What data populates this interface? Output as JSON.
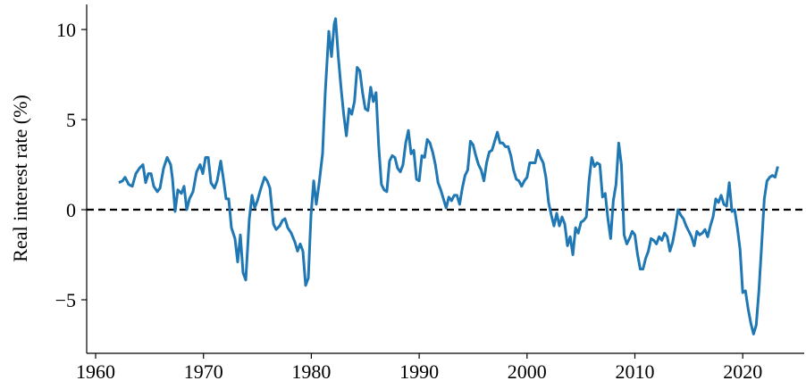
{
  "chart_data": {
    "type": "line",
    "y_label": "Real interest rate (%)",
    "x": [
      1962.15,
      1962.49,
      1962.73,
      1963.07,
      1963.4,
      1963.73,
      1964.06,
      1964.39,
      1964.64,
      1964.89,
      1965.14,
      1965.39,
      1965.72,
      1965.97,
      1966.3,
      1966.63,
      1966.96,
      1967.13,
      1967.37,
      1967.62,
      1967.95,
      1968.2,
      1968.45,
      1968.7,
      1969.03,
      1969.36,
      1969.69,
      1969.94,
      1970.19,
      1970.44,
      1970.69,
      1971.02,
      1971.27,
      1971.6,
      1971.85,
      1972.1,
      1972.34,
      1972.59,
      1972.92,
      1973.17,
      1973.42,
      1973.67,
      1973.92,
      1974.25,
      1974.5,
      1974.75,
      1975.0,
      1975.33,
      1975.66,
      1975.91,
      1976.16,
      1976.49,
      1976.74,
      1977.07,
      1977.32,
      1977.56,
      1977.81,
      1978.14,
      1978.48,
      1978.72,
      1978.97,
      1979.22,
      1979.47,
      1979.72,
      1979.97,
      1980.22,
      1980.46,
      1980.71,
      1981.04,
      1981.29,
      1981.62,
      1981.87,
      1982.12,
      1982.25,
      1982.5,
      1982.75,
      1983,
      1983.25,
      1983.5,
      1983.75,
      1984,
      1984.25,
      1984.5,
      1984.75,
      1985,
      1985.25,
      1985.5,
      1985.75,
      1986,
      1986.25,
      1986.5,
      1986.75,
      1987,
      1987.25,
      1987.5,
      1987.75,
      1988,
      1988.25,
      1988.5,
      1988.75,
      1989,
      1989.25,
      1989.5,
      1989.75,
      1990,
      1990.25,
      1990.5,
      1990.75,
      1991,
      1991.25,
      1991.5,
      1991.75,
      1992,
      1992.25,
      1992.5,
      1992.75,
      1993,
      1993.25,
      1993.5,
      1993.75,
      1994,
      1994.25,
      1994.5,
      1994.75,
      1995,
      1995.25,
      1995.5,
      1995.75,
      1996,
      1996.25,
      1996.5,
      1996.75,
      1997,
      1997.25,
      1997.5,
      1997.75,
      1998,
      1998.25,
      1998.5,
      1998.75,
      1999,
      1999.25,
      1999.5,
      1999.75,
      2000,
      2000.25,
      2000.5,
      2000.75,
      2001,
      2001.25,
      2001.5,
      2001.75,
      2002,
      2002.25,
      2002.5,
      2002.75,
      2003,
      2003.25,
      2003.5,
      2003.75,
      2004,
      2004.25,
      2004.5,
      2004.75,
      2005,
      2005.25,
      2005.5,
      2005.75,
      2006,
      2006.25,
      2006.5,
      2006.75,
      2007,
      2007.25,
      2007.5,
      2007.75,
      2008,
      2008.25,
      2008.5,
      2008.75,
      2009,
      2009.25,
      2009.5,
      2009.75,
      2010,
      2010.25,
      2010.5,
      2010.75,
      2011,
      2011.25,
      2011.5,
      2011.75,
      2012,
      2012.25,
      2012.5,
      2012.75,
      2013,
      2013.25,
      2013.5,
      2013.75,
      2014,
      2014.25,
      2014.5,
      2014.75,
      2015,
      2015.25,
      2015.5,
      2015.75,
      2016,
      2016.25,
      2016.5,
      2016.75,
      2017,
      2017.25,
      2017.5,
      2017.75,
      2018,
      2018.25,
      2018.5,
      2018.75,
      2019,
      2019.25,
      2019.5,
      2019.75,
      2020,
      2020.25,
      2020.5,
      2020.75,
      2021,
      2021.25,
      2021.5,
      2021.75,
      2022,
      2022.25,
      2022.5,
      2022.75,
      2023,
      2023.25
    ],
    "series": [
      {
        "color": "#1f77b4",
        "values": [
          1.5,
          1.6,
          1.8,
          1.4,
          1.3,
          2.0,
          2.3,
          2.5,
          1.5,
          2.0,
          2.0,
          1.3,
          1.0,
          1.2,
          2.3,
          2.9,
          2.5,
          1.7,
          -0.1,
          1.1,
          0.9,
          1.3,
          0.0,
          0.6,
          1.0,
          2.1,
          2.5,
          2.0,
          2.9,
          2.9,
          1.5,
          1.2,
          1.6,
          2.7,
          1.7,
          0.6,
          0.6,
          -1.0,
          -1.6,
          -2.9,
          -1.4,
          -3.5,
          -3.9,
          -0.5,
          0.8,
          0.1,
          0.5,
          1.2,
          1.8,
          1.6,
          1.2,
          -0.8,
          -1.1,
          -0.9,
          -0.6,
          -0.5,
          -1.0,
          -1.3,
          -1.8,
          -2.3,
          -1.9,
          -2.3,
          -4.2,
          -3.8,
          -0.3,
          1.6,
          0.3,
          1.4,
          3.1,
          6.5,
          9.9,
          8.5,
          10.3,
          10.6,
          8.5,
          6.8,
          5.3,
          4.1,
          5.6,
          5.3,
          6.0,
          7.9,
          7.7,
          6.5,
          5.6,
          5.5,
          6.8,
          6.0,
          6.5,
          3.5,
          1.4,
          1.1,
          1.0,
          2.7,
          3.0,
          2.9,
          2.3,
          2.1,
          2.5,
          3.7,
          4.4,
          3.1,
          3.3,
          1.7,
          1.6,
          3.0,
          2.9,
          3.9,
          3.7,
          3.2,
          2.5,
          1.5,
          1.1,
          0.6,
          0.1,
          0.7,
          0.5,
          0.8,
          0.8,
          0.3,
          1.2,
          1.9,
          2.2,
          3.8,
          3.6,
          3.0,
          2.5,
          2.2,
          1.6,
          2.6,
          3.2,
          3.3,
          3.8,
          4.3,
          3.7,
          3.7,
          3.5,
          3.5,
          3.0,
          2.2,
          1.7,
          1.6,
          1.3,
          1.6,
          1.8,
          2.6,
          2.6,
          2.6,
          3.3,
          2.9,
          2.6,
          1.8,
          0.4,
          -0.3,
          -0.9,
          -0.2,
          -0.9,
          -0.4,
          -0.8,
          -2.0,
          -1.5,
          -2.5,
          -1.0,
          -1.3,
          -0.7,
          -0.6,
          -0.4,
          1.6,
          2.9,
          2.4,
          2.6,
          2.5,
          0.7,
          0.9,
          -0.5,
          -1.6,
          0.5,
          1.4,
          3.7,
          2.5,
          -1.4,
          -1.9,
          -1.6,
          -1.2,
          -1.4,
          -2.5,
          -3.3,
          -3.3,
          -2.7,
          -2.3,
          -1.6,
          -1.7,
          -1.9,
          -1.5,
          -1.7,
          -1.3,
          -1.5,
          -2.3,
          -1.8,
          -1.0,
          0.0,
          -0.3,
          -0.5,
          -0.9,
          -1.2,
          -1.5,
          -2.0,
          -1.2,
          -1.4,
          -1.3,
          -1.1,
          -1.5,
          -0.9,
          -0.4,
          0.6,
          0.4,
          0.8,
          0.3,
          0.2,
          1.5,
          -0.1,
          0.0,
          -1.0,
          -2.2,
          -4.6,
          -4.5,
          -5.5,
          -6.3,
          -6.9,
          -6.4,
          -4.5,
          -2.0,
          0.6,
          1.6,
          1.8,
          1.9,
          1.8,
          2.4
        ]
      }
    ],
    "hline": 0,
    "xlim": [
      1959.17,
      2025.7
    ],
    "ylim": [
      -7.97,
      11.39
    ],
    "xticks": [
      1960,
      1970,
      1980,
      1990,
      2000,
      2010,
      2020
    ],
    "yticks": [
      {
        "value": -5,
        "label": "−5"
      },
      0,
      5,
      10
    ]
  }
}
